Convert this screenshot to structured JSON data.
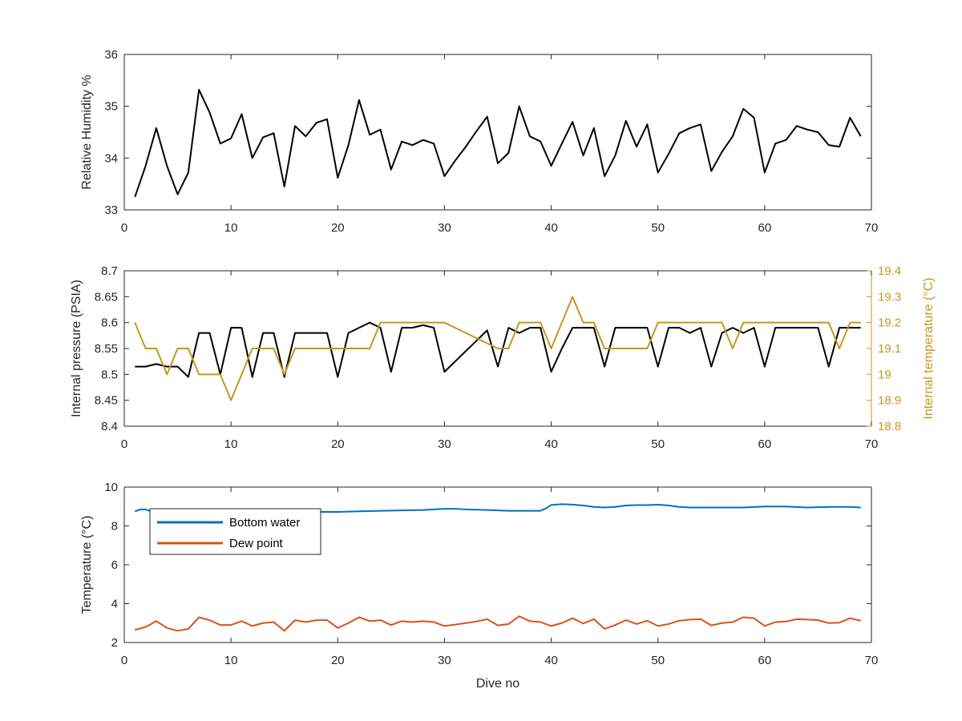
{
  "chart_data": [
    {
      "type": "line",
      "title": "",
      "xlabel": "",
      "ylabel": "Relative Humidity %",
      "xlim": [
        0,
        70
      ],
      "ylim": [
        33,
        36
      ],
      "xticks": [
        "0",
        "10",
        "20",
        "30",
        "40",
        "50",
        "60",
        "70"
      ],
      "yticks": [
        "33",
        "34",
        "35",
        "36"
      ],
      "grid": false,
      "series": [
        {
          "color": "#000000",
          "x": [
            1,
            2,
            3,
            4,
            5,
            6,
            7,
            8,
            9,
            10,
            11,
            12,
            13,
            14,
            15,
            16,
            17,
            18,
            19,
            20,
            21,
            22,
            23,
            24,
            25,
            26,
            27,
            28,
            29,
            30,
            31,
            32,
            33,
            34,
            35,
            36,
            37,
            38,
            39,
            40,
            41,
            42,
            43,
            44,
            45,
            46,
            47,
            48,
            49,
            50,
            51,
            52,
            53,
            54,
            55,
            56,
            57,
            58,
            59,
            60,
            61,
            62,
            63,
            64,
            65,
            66,
            67,
            68,
            69
          ],
          "values": [
            33.25,
            33.85,
            34.58,
            33.85,
            33.3,
            33.72,
            35.32,
            34.88,
            34.28,
            34.38,
            34.85,
            34.0,
            34.4,
            34.48,
            33.45,
            34.62,
            34.42,
            34.68,
            34.75,
            33.62,
            34.25,
            35.12,
            34.45,
            34.55,
            33.78,
            34.32,
            34.25,
            34.35,
            34.28,
            33.65,
            33.95,
            34.22,
            34.52,
            34.8,
            33.9,
            34.1,
            35.0,
            34.42,
            34.32,
            33.85,
            34.28,
            34.7,
            34.05,
            34.58,
            33.65,
            34.05,
            34.72,
            34.22,
            34.65,
            33.72,
            34.08,
            34.48,
            34.58,
            34.65,
            33.75,
            34.12,
            34.42,
            34.95,
            34.78,
            33.72,
            34.28,
            34.35,
            34.62,
            34.55,
            34.5,
            34.25,
            34.22,
            34.78,
            34.42
          ]
        }
      ]
    },
    {
      "type": "line",
      "title": "",
      "xlabel": "",
      "ylabel": "Internal pressure (PSIA)",
      "y2label": "Internal temperature (°C)",
      "xlim": [
        0,
        70
      ],
      "ylim": [
        8.4,
        8.7
      ],
      "y2lim": [
        18.8,
        19.4
      ],
      "xticks": [
        "0",
        "10",
        "20",
        "30",
        "40",
        "50",
        "60",
        "70"
      ],
      "yticks": [
        "8.4",
        "8.45",
        "8.5",
        "8.55",
        "8.6",
        "8.65",
        "8.7"
      ],
      "y2ticks": [
        "18.8",
        "18.9",
        "19",
        "19.1",
        "19.2",
        "19.3",
        "19.4"
      ],
      "grid": false,
      "axis_colors": {
        "left": "#262626",
        "right": "#c8961e"
      },
      "series": [
        {
          "axis": "left",
          "color": "#000000",
          "x": [
            1,
            2,
            3,
            4,
            5,
            6,
            7,
            8,
            9,
            10,
            11,
            12,
            13,
            14,
            15,
            16,
            17,
            18,
            19,
            20,
            21,
            22,
            23,
            24,
            25,
            26,
            27,
            28,
            29,
            30,
            31,
            32,
            33,
            34,
            35,
            36,
            37,
            38,
            39,
            40,
            41,
            42,
            43,
            44,
            45,
            46,
            47,
            48,
            49,
            50,
            51,
            52,
            53,
            54,
            55,
            56,
            57,
            58,
            59,
            60,
            61,
            62,
            63,
            64,
            65,
            66,
            67,
            68,
            69
          ],
          "values": [
            8.515,
            8.515,
            8.52,
            8.515,
            8.515,
            8.495,
            8.58,
            8.58,
            8.5,
            8.59,
            8.59,
            8.495,
            8.58,
            8.58,
            8.495,
            8.58,
            8.58,
            8.58,
            8.58,
            8.495,
            8.58,
            8.59,
            8.6,
            8.59,
            8.505,
            8.59,
            8.59,
            8.595,
            8.59,
            8.505,
            8.525,
            8.545,
            8.565,
            8.585,
            8.515,
            8.59,
            8.58,
            8.59,
            8.59,
            8.505,
            8.55,
            8.59,
            8.59,
            8.59,
            8.515,
            8.59,
            8.59,
            8.59,
            8.59,
            8.515,
            8.59,
            8.59,
            8.58,
            8.59,
            8.515,
            8.58,
            8.59,
            8.58,
            8.59,
            8.515,
            8.59,
            8.59,
            8.59,
            8.59,
            8.59,
            8.515,
            8.59,
            8.59,
            8.59
          ]
        },
        {
          "axis": "right",
          "color": "#c8961e",
          "x": [
            1,
            2,
            3,
            4,
            5,
            6,
            7,
            8,
            9,
            10,
            11,
            12,
            13,
            14,
            15,
            16,
            17,
            18,
            19,
            20,
            21,
            22,
            23,
            24,
            25,
            26,
            27,
            28,
            29,
            30,
            31,
            32,
            33,
            34,
            35,
            36,
            37,
            38,
            39,
            40,
            41,
            42,
            43,
            44,
            45,
            46,
            47,
            48,
            49,
            50,
            51,
            52,
            53,
            54,
            55,
            56,
            57,
            58,
            59,
            60,
            61,
            62,
            63,
            64,
            65,
            66,
            67,
            68,
            69
          ],
          "values": [
            19.2,
            19.1,
            19.1,
            19.0,
            19.1,
            19.1,
            19.0,
            19.0,
            19.0,
            18.9,
            19.0,
            19.1,
            19.1,
            19.1,
            19.0,
            19.1,
            19.1,
            19.1,
            19.1,
            19.1,
            19.1,
            19.1,
            19.1,
            19.2,
            19.2,
            19.2,
            19.2,
            19.2,
            19.2,
            19.2,
            19.18,
            19.16,
            19.14,
            19.12,
            19.1,
            19.1,
            19.2,
            19.2,
            19.2,
            19.1,
            19.2,
            19.3,
            19.2,
            19.2,
            19.1,
            19.1,
            19.1,
            19.1,
            19.1,
            19.2,
            19.2,
            19.2,
            19.2,
            19.2,
            19.2,
            19.2,
            19.1,
            19.2,
            19.2,
            19.2,
            19.2,
            19.2,
            19.2,
            19.2,
            19.2,
            19.2,
            19.1,
            19.2,
            19.2
          ]
        }
      ]
    },
    {
      "type": "line",
      "title": "",
      "xlabel": "Dive no",
      "ylabel": "Temperature (°C)",
      "xlim": [
        0,
        70
      ],
      "ylim": [
        2,
        10
      ],
      "xticks": [
        "0",
        "10",
        "20",
        "30",
        "40",
        "50",
        "60",
        "70"
      ],
      "yticks": [
        "2",
        "4",
        "6",
        "8",
        "10"
      ],
      "grid": false,
      "legend": "top-left",
      "series": [
        {
          "name": "Bottom water",
          "color": "#0072bd",
          "x": [
            1,
            1.5,
            2,
            2.5,
            3,
            4,
            5,
            6,
            7,
            8,
            9,
            10,
            12,
            14,
            16,
            18,
            20,
            22,
            24,
            26,
            28,
            29,
            30,
            31,
            32,
            34,
            36,
            38,
            39,
            39.5,
            40,
            41,
            42,
            43,
            44,
            45,
            46,
            47,
            48,
            49,
            50,
            51,
            52,
            53,
            54,
            56,
            58,
            60,
            62,
            64,
            66,
            68,
            69
          ],
          "values": [
            8.75,
            8.85,
            8.85,
            8.75,
            8.75,
            8.75,
            8.75,
            8.75,
            8.75,
            8.75,
            8.75,
            8.75,
            8.72,
            8.72,
            8.72,
            8.72,
            8.72,
            8.75,
            8.78,
            8.8,
            8.82,
            8.85,
            8.88,
            8.88,
            8.85,
            8.82,
            8.78,
            8.78,
            8.78,
            8.9,
            9.08,
            9.12,
            9.1,
            9.05,
            8.98,
            8.95,
            8.98,
            9.05,
            9.07,
            9.07,
            9.1,
            9.05,
            8.98,
            8.95,
            8.95,
            8.95,
            8.95,
            9.0,
            9.0,
            8.95,
            8.98,
            8.98,
            8.95
          ]
        },
        {
          "name": "Dew point",
          "color": "#d95319",
          "x": [
            1,
            2,
            3,
            4,
            5,
            6,
            7,
            8,
            9,
            10,
            11,
            12,
            13,
            14,
            15,
            16,
            17,
            18,
            19,
            20,
            21,
            22,
            23,
            24,
            25,
            26,
            27,
            28,
            29,
            30,
            31,
            32,
            33,
            34,
            35,
            36,
            37,
            38,
            39,
            40,
            41,
            42,
            43,
            44,
            45,
            46,
            47,
            48,
            49,
            50,
            51,
            52,
            53,
            54,
            55,
            56,
            57,
            58,
            59,
            60,
            61,
            62,
            63,
            64,
            65,
            66,
            67,
            68,
            69
          ],
          "values": [
            2.65,
            2.8,
            3.1,
            2.75,
            2.6,
            2.7,
            3.3,
            3.15,
            2.9,
            2.9,
            3.1,
            2.85,
            3.0,
            3.05,
            2.6,
            3.15,
            3.05,
            3.15,
            3.15,
            2.75,
            3.0,
            3.3,
            3.1,
            3.15,
            2.9,
            3.1,
            3.05,
            3.1,
            3.05,
            2.85,
            2.92,
            3.0,
            3.08,
            3.2,
            2.88,
            2.95,
            3.35,
            3.1,
            3.05,
            2.85,
            3.0,
            3.25,
            2.98,
            3.2,
            2.7,
            2.9,
            3.15,
            2.95,
            3.12,
            2.85,
            2.95,
            3.12,
            3.18,
            3.2,
            2.88,
            3.0,
            3.05,
            3.3,
            3.25,
            2.85,
            3.05,
            3.08,
            3.2,
            3.18,
            3.15,
            3.0,
            3.02,
            3.25,
            3.12
          ]
        }
      ]
    }
  ]
}
